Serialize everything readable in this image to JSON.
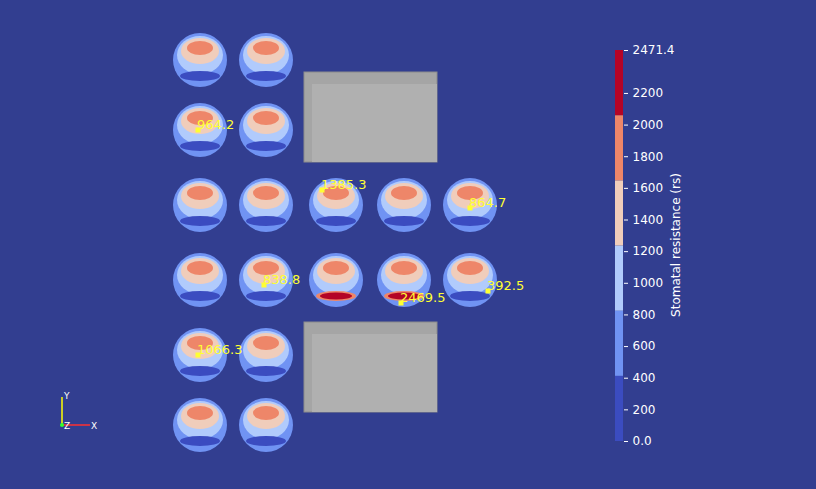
{
  "chart_data": {
    "type": "contour",
    "colorbar": {
      "label": "Stomatal resistance (rs)",
      "range": [
        0,
        2471.4
      ],
      "ticks": [
        {
          "value": 0,
          "label": "0.0"
        },
        200,
        400,
        600,
        800,
        1000,
        1200,
        1400,
        1600,
        1800,
        2000,
        2200,
        2471.4
      ],
      "bounds": [
        0,
        411.9,
        823.8,
        1235.7,
        1647.6,
        2059.5,
        2471.4
      ],
      "colors": [
        "#3b4cc0",
        "#7093f3",
        "#b1cbfc",
        "#f0cdbb",
        "#ee8669",
        "#b40426"
      ]
    },
    "plants": [
      {
        "values": [
          600,
          1000,
          1400,
          1850,
          200
        ]
      },
      {
        "values": [
          600,
          1000,
          1400,
          1850,
          200
        ]
      },
      {
        "values": [
          600,
          1000,
          1400,
          1850,
          200
        ]
      },
      {
        "values": [
          600,
          1000,
          1400,
          1850,
          200
        ]
      },
      {
        "values": [
          600,
          1000,
          1400,
          1850,
          200
        ]
      },
      {
        "values": [
          600,
          1000,
          1400,
          1850,
          200
        ]
      },
      {
        "values": [
          600,
          1000,
          1400,
          1850,
          200
        ]
      },
      {
        "values": [
          600,
          1000,
          1400,
          1850,
          200
        ]
      },
      {
        "values": [
          600,
          1000,
          1400,
          1850,
          200
        ]
      },
      {
        "values": [
          600,
          1000,
          1400,
          1850,
          200
        ]
      },
      {
        "values": [
          600,
          1000,
          1400,
          1850,
          200
        ]
      },
      {
        "values": [
          600,
          1000,
          1400,
          1850,
          1850,
          2300
        ]
      },
      {
        "values": [
          600,
          1000,
          1400,
          1850,
          1850,
          2300
        ]
      },
      {
        "values": [
          600,
          1000,
          1400,
          1850,
          200
        ]
      },
      {
        "values": [
          600,
          1000,
          1400,
          1850,
          200
        ]
      },
      {
        "values": [
          600,
          1000,
          1400,
          1850,
          200
        ]
      },
      {
        "values": [
          600,
          1000,
          1400,
          1850,
          200
        ]
      },
      {
        "values": [
          600,
          1000,
          1400,
          1850,
          200
        ]
      }
    ],
    "annotations": [
      {
        "value": 964.2
      },
      {
        "value": 1385.3
      },
      {
        "value": 864.7
      },
      {
        "value": 838.8
      },
      {
        "value": 2469.5
      },
      {
        "value": 392.5
      },
      {
        "value": 1066.3
      }
    ],
    "axes_labels": [
      "X",
      "Y",
      "Z"
    ]
  }
}
